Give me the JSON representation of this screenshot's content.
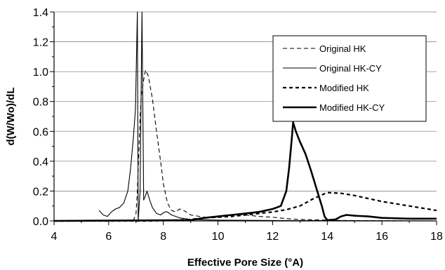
{
  "chart_data": {
    "type": "line",
    "title": "",
    "xlabel": "Effective Pore Size (°A)",
    "ylabel": "d(W/Wo)/dL",
    "xlim": [
      4,
      18
    ],
    "ylim": [
      0,
      1.4
    ],
    "x_ticks": [
      4,
      6,
      8,
      10,
      12,
      14,
      16,
      18
    ],
    "x_tick_labels": [
      "4",
      "6",
      "8",
      "10",
      "12",
      "14",
      "16",
      "18"
    ],
    "y_ticks": [
      0,
      0.2,
      0.4,
      0.6,
      0.8,
      1.0,
      1.2,
      1.4
    ],
    "y_tick_labels": [
      "0.0",
      "0.2",
      "0.4",
      "0.6",
      "0.8",
      "1.0",
      "1.2",
      "1.4"
    ],
    "grid": "horizontal",
    "legend_position": "top-right",
    "series": [
      {
        "name": "Original HK",
        "style": "dashed-thin",
        "points": [
          [
            6.9,
            0.0
          ],
          [
            7.0,
            0.05
          ],
          [
            7.05,
            0.2
          ],
          [
            7.1,
            0.45
          ],
          [
            7.15,
            0.7
          ],
          [
            7.2,
            0.85
          ],
          [
            7.3,
            0.97
          ],
          [
            7.35,
            1.01
          ],
          [
            7.45,
            0.97
          ],
          [
            7.6,
            0.82
          ],
          [
            7.75,
            0.6
          ],
          [
            7.9,
            0.4
          ],
          [
            8.0,
            0.25
          ],
          [
            8.15,
            0.12
          ],
          [
            8.3,
            0.07
          ],
          [
            8.45,
            0.06
          ],
          [
            8.6,
            0.08
          ],
          [
            8.75,
            0.07
          ],
          [
            9.0,
            0.04
          ],
          [
            9.5,
            0.025
          ],
          [
            10.0,
            0.025
          ],
          [
            10.5,
            0.04
          ],
          [
            11.0,
            0.04
          ],
          [
            11.5,
            0.03
          ],
          [
            12.0,
            0.025
          ],
          [
            12.5,
            0.015
          ],
          [
            13.0,
            0.01
          ],
          [
            14.0,
            0.005
          ],
          [
            15.0,
            0.002
          ],
          [
            18.0,
            0.0
          ]
        ]
      },
      {
        "name": "Original HK-CY",
        "style": "solid-thin",
        "points": [
          [
            5.65,
            0.07
          ],
          [
            5.8,
            0.04
          ],
          [
            5.95,
            0.03
          ],
          [
            6.1,
            0.06
          ],
          [
            6.25,
            0.08
          ],
          [
            6.4,
            0.09
          ],
          [
            6.55,
            0.12
          ],
          [
            6.7,
            0.2
          ],
          [
            6.8,
            0.35
          ],
          [
            6.9,
            0.55
          ],
          [
            6.98,
            0.75
          ],
          [
            7.05,
            1.4
          ],
          [
            7.08,
            0.0
          ],
          [
            7.15,
            0.2
          ],
          [
            7.22,
            1.4
          ],
          [
            7.28,
            0.14
          ],
          [
            7.35,
            0.17
          ],
          [
            7.4,
            0.2
          ],
          [
            7.5,
            0.14
          ],
          [
            7.6,
            0.09
          ],
          [
            7.75,
            0.05
          ],
          [
            7.9,
            0.04
          ],
          [
            8.05,
            0.06
          ],
          [
            8.15,
            0.06
          ],
          [
            8.3,
            0.04
          ],
          [
            8.6,
            0.02
          ],
          [
            9.0,
            0.01
          ],
          [
            10.0,
            0.005
          ],
          [
            12.0,
            0.003
          ],
          [
            18.0,
            0.0
          ]
        ]
      },
      {
        "name": "Modified HK",
        "style": "dashed-thick",
        "points": [
          [
            4.0,
            0.0
          ],
          [
            7.5,
            0.0
          ],
          [
            8.5,
            0.005
          ],
          [
            9.0,
            0.01
          ],
          [
            9.5,
            0.02
          ],
          [
            10.0,
            0.025
          ],
          [
            10.5,
            0.03
          ],
          [
            11.0,
            0.04
          ],
          [
            11.5,
            0.05
          ],
          [
            12.0,
            0.06
          ],
          [
            12.5,
            0.075
          ],
          [
            13.0,
            0.1
          ],
          [
            13.5,
            0.15
          ],
          [
            14.0,
            0.19
          ],
          [
            14.5,
            0.185
          ],
          [
            15.0,
            0.17
          ],
          [
            15.5,
            0.15
          ],
          [
            16.0,
            0.13
          ],
          [
            17.0,
            0.1
          ],
          [
            18.0,
            0.07
          ]
        ]
      },
      {
        "name": "Modified HK-CY",
        "style": "solid-thick",
        "points": [
          [
            4.0,
            0.0
          ],
          [
            9.0,
            0.005
          ],
          [
            9.5,
            0.02
          ],
          [
            10.0,
            0.03
          ],
          [
            10.5,
            0.04
          ],
          [
            11.0,
            0.05
          ],
          [
            11.5,
            0.06
          ],
          [
            12.0,
            0.08
          ],
          [
            12.3,
            0.1
          ],
          [
            12.5,
            0.2
          ],
          [
            12.6,
            0.35
          ],
          [
            12.7,
            0.55
          ],
          [
            12.75,
            0.66
          ],
          [
            12.85,
            0.6
          ],
          [
            13.0,
            0.53
          ],
          [
            13.2,
            0.45
          ],
          [
            13.4,
            0.34
          ],
          [
            13.6,
            0.22
          ],
          [
            13.8,
            0.1
          ],
          [
            13.9,
            0.03
          ],
          [
            14.0,
            0.005
          ],
          [
            14.3,
            0.01
          ],
          [
            14.5,
            0.03
          ],
          [
            14.7,
            0.04
          ],
          [
            15.0,
            0.035
          ],
          [
            15.5,
            0.03
          ],
          [
            16.0,
            0.02
          ],
          [
            17.0,
            0.015
          ],
          [
            18.0,
            0.015
          ]
        ]
      }
    ]
  }
}
